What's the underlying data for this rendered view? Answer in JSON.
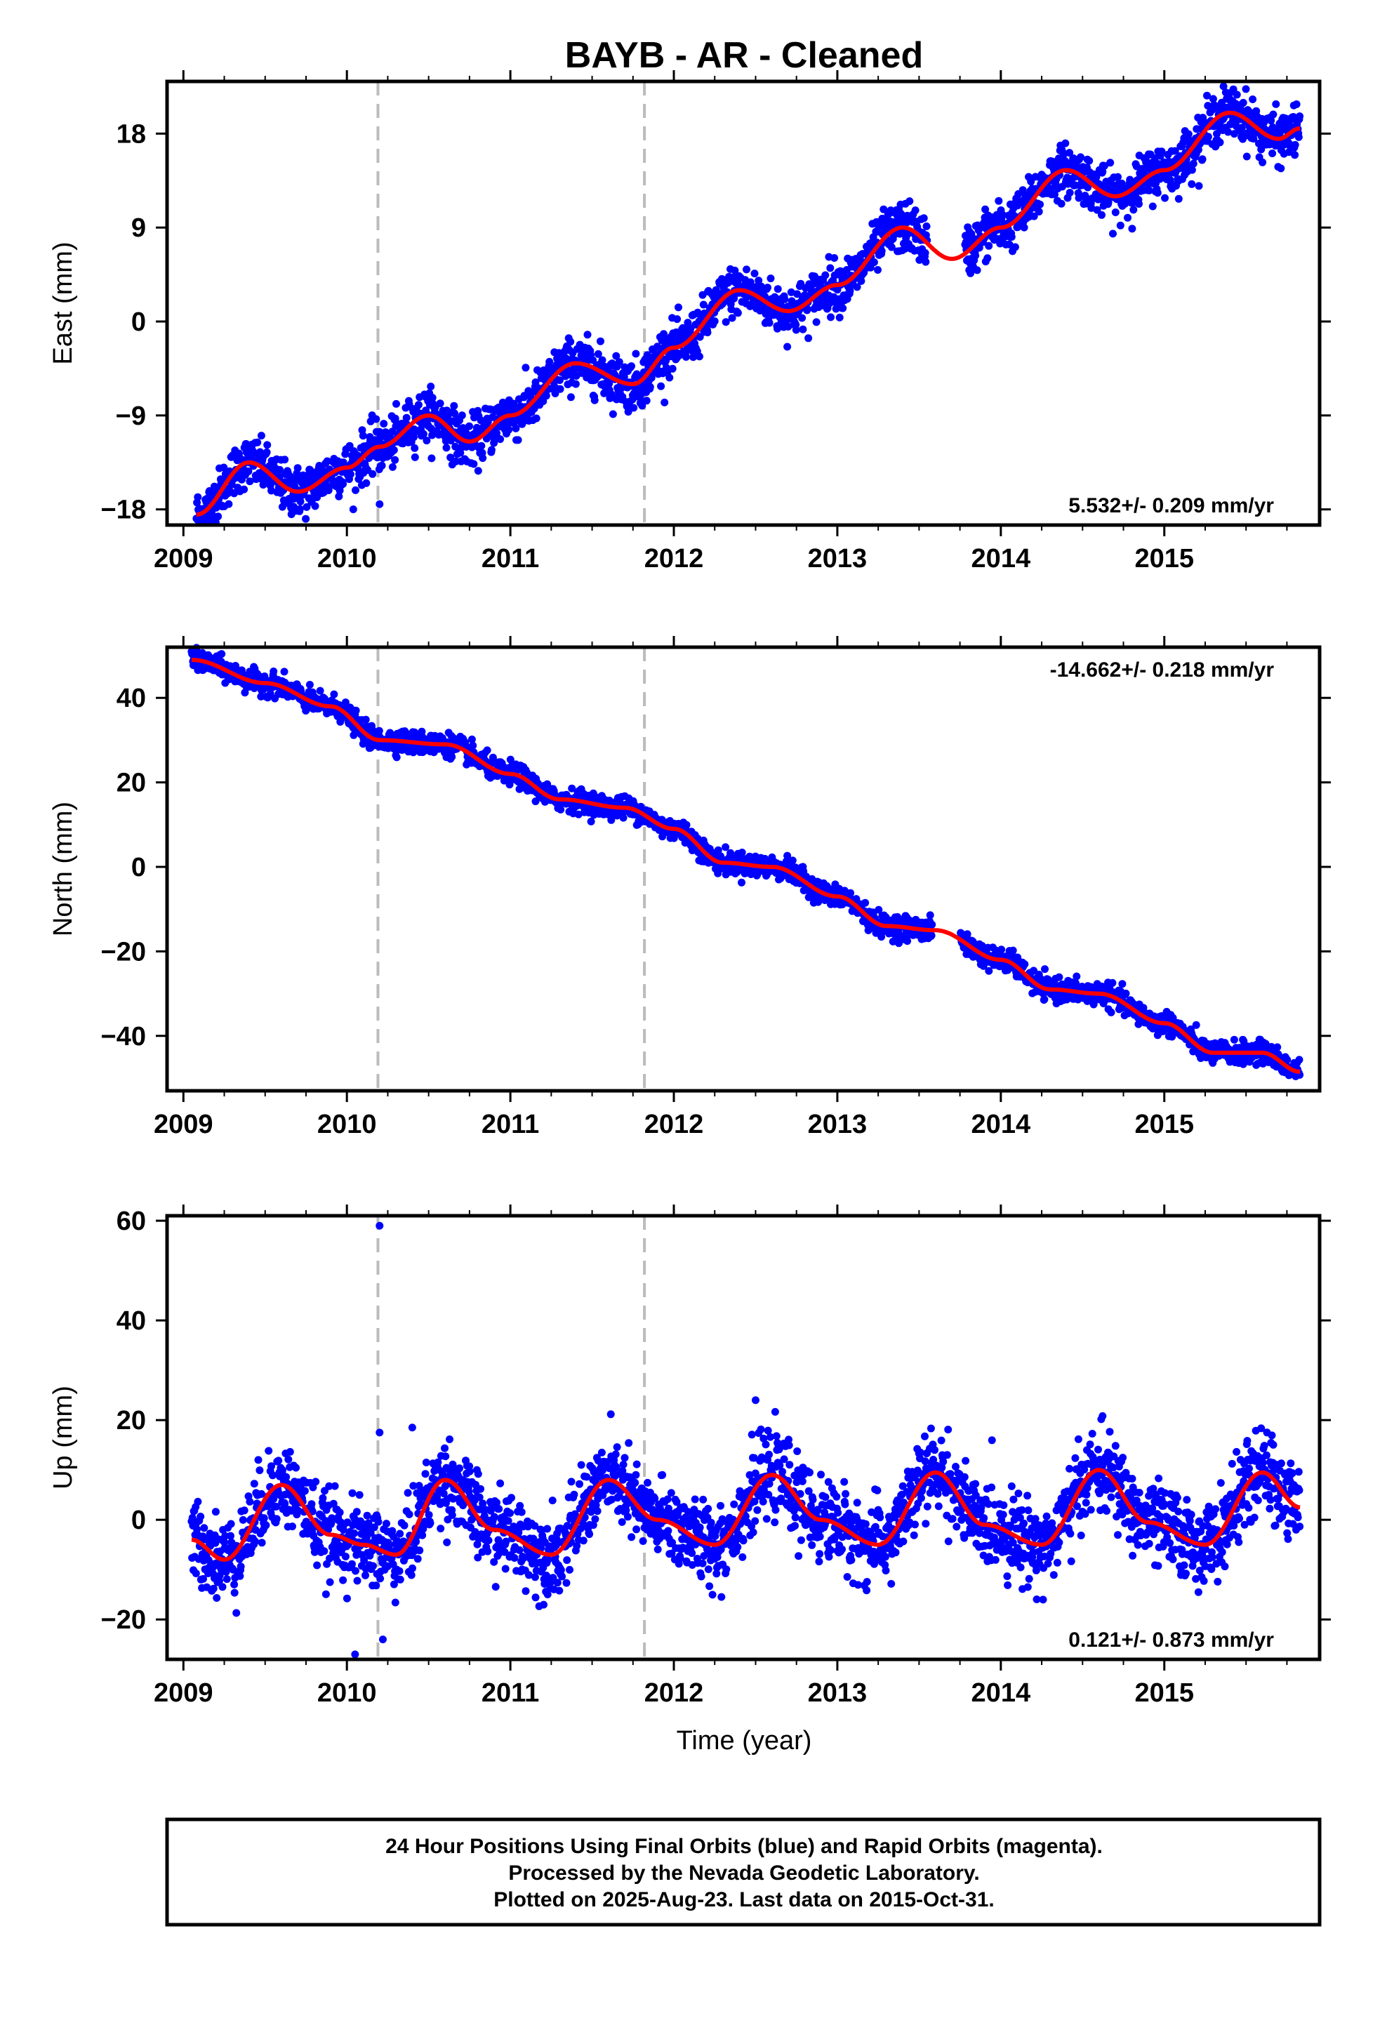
{
  "title": "BAYB  - AR - Cleaned",
  "xlabel": "Time (year)",
  "footer": {
    "line1": "24 Hour Positions Using Final Orbits (blue) and Rapid Orbits (magenta).",
    "line2": "Processed by the Nevada Geodetic Laboratory.",
    "line3": "Plotted on 2025-Aug-23. Last data on 2015-Oct-31."
  },
  "colors": {
    "points": "#0000ff",
    "fit": "#ff0000",
    "event_lines": "#bbbbbb",
    "frame": "#000000"
  },
  "chart_data": [
    {
      "type": "scatter",
      "panel": "east",
      "ylabel": "East (mm)",
      "xlim": [
        2008.9,
        2015.95
      ],
      "ylim": [
        -19.5,
        23
      ],
      "xticks": [
        "2009",
        "2010",
        "2011",
        "2012",
        "2013",
        "2014",
        "2015"
      ],
      "yticks": [
        18,
        9,
        0,
        -9,
        -18
      ],
      "ytick_labels": [
        "18",
        "9",
        "0",
        "−9",
        "−18"
      ],
      "rate_label": "5.532+/- 0.209 mm/yr",
      "event_lines_x": [
        2010.19,
        2011.82
      ],
      "series": [
        {
          "x": [
            2009.08,
            2009.4,
            2009.7,
            2010.0,
            2010.2,
            2010.5,
            2010.75,
            2011.0,
            2011.4,
            2011.75,
            2012.0,
            2012.4,
            2012.7,
            2013.0,
            2013.4,
            2013.7,
            2014.0,
            2014.4,
            2014.7,
            2015.0,
            2015.4,
            2015.7,
            2015.83
          ],
          "y": [
            -18.5,
            -13.5,
            -16.3,
            -14.0,
            -12.0,
            -9.0,
            -11.5,
            -9.0,
            -4.0,
            -6.0,
            -2.5,
            3.0,
            1.0,
            3.5,
            9.0,
            6.0,
            9.0,
            14.5,
            12.0,
            14.5,
            20.0,
            17.5,
            18.5
          ],
          "scatter_mm": 1.2,
          "outliers": [
            [
              2010.2,
              -17.5
            ]
          ]
        }
      ]
    },
    {
      "type": "scatter",
      "panel": "north",
      "ylabel": "North (mm)",
      "xlim": [
        2008.9,
        2015.95
      ],
      "ylim": [
        -53,
        52
      ],
      "xticks": [
        "2009",
        "2010",
        "2011",
        "2012",
        "2013",
        "2014",
        "2015"
      ],
      "yticks": [
        40,
        20,
        0,
        -20,
        -40
      ],
      "ytick_labels": [
        "40",
        "20",
        "0",
        "−20",
        "−40"
      ],
      "rate_label": "-14.662+/- 0.218 mm/yr",
      "event_lines_x": [
        2010.19,
        2011.82
      ],
      "series": [
        {
          "x": [
            2009.05,
            2009.5,
            2009.9,
            2010.2,
            2010.6,
            2011.0,
            2011.3,
            2011.7,
            2012.0,
            2012.3,
            2012.6,
            2013.0,
            2013.3,
            2013.6,
            2014.0,
            2014.3,
            2014.6,
            2015.0,
            2015.3,
            2015.6,
            2015.83
          ],
          "y": [
            49.0,
            43.5,
            38.0,
            30.0,
            29.0,
            22.0,
            16.0,
            14.0,
            9.0,
            1.0,
            0.0,
            -7.0,
            -14.0,
            -15.0,
            -22.0,
            -29.0,
            -30.0,
            -37.0,
            -44.0,
            -44.0,
            -48.5
          ],
          "scatter_mm": 1.3,
          "outliers": []
        }
      ]
    },
    {
      "type": "scatter",
      "panel": "up",
      "ylabel": "Up (mm)",
      "xlim": [
        2008.9,
        2015.95
      ],
      "ylim": [
        -28,
        61
      ],
      "xticks": [
        "2009",
        "2010",
        "2011",
        "2012",
        "2013",
        "2014",
        "2015"
      ],
      "yticks": [
        60,
        40,
        20,
        0,
        -20
      ],
      "ytick_labels": [
        "60",
        "40",
        "20",
        "0",
        "−20"
      ],
      "rate_label": "0.121+/- 0.873 mm/yr",
      "event_lines_x": [
        2010.19,
        2011.82
      ],
      "series": [
        {
          "x": [
            2009.05,
            2009.25,
            2009.6,
            2009.9,
            2010.1,
            2010.3,
            2010.6,
            2010.9,
            2011.25,
            2011.6,
            2011.9,
            2012.25,
            2012.6,
            2012.9,
            2013.25,
            2013.6,
            2013.9,
            2014.25,
            2014.6,
            2014.9,
            2015.25,
            2015.6,
            2015.83
          ],
          "y": [
            -4.0,
            -8.0,
            7.0,
            -3.0,
            -5.0,
            -7.0,
            8.0,
            -2.0,
            -7.0,
            8.0,
            0.0,
            -5.0,
            9.0,
            0.0,
            -5.0,
            9.5,
            -1.0,
            -5.0,
            10.0,
            -0.5,
            -5.0,
            9.5,
            2.5
          ],
          "scatter_mm": 4.0,
          "outliers": [
            [
              2010.2,
              59
            ],
            [
              2010.05,
              -27
            ],
            [
              2010.22,
              -24
            ],
            [
              2010.2,
              17.5
            ],
            [
              2010.4,
              18.5
            ],
            [
              2012.5,
              24
            ]
          ]
        }
      ]
    }
  ]
}
